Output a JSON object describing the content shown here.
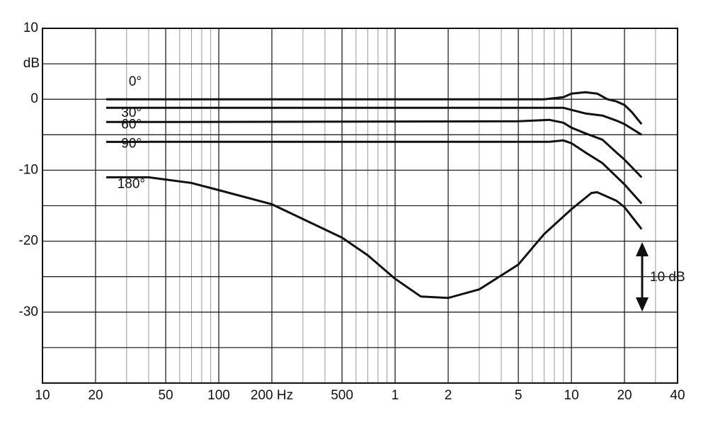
{
  "chart_data": {
    "type": "line",
    "y_axis_label": "dB",
    "annotation": "10 dB",
    "log_x": true,
    "grid": true,
    "color": "#111111",
    "xlim": [
      10,
      40000
    ],
    "ylim": [
      -40,
      10
    ],
    "xticks": [
      10,
      20,
      50,
      100,
      {
        "value": 200,
        "label": "200 Hz"
      },
      500,
      {
        "value": 1000,
        "label": "1"
      },
      {
        "value": 2000,
        "label": "2"
      },
      {
        "value": 5000,
        "label": "5"
      },
      {
        "value": 10000,
        "label": "10"
      },
      {
        "value": 20000,
        "label": "20"
      },
      {
        "value": 40000,
        "label": "40"
      }
    ],
    "x_minor_grid": [
      30,
      40,
      60,
      70,
      80,
      90,
      300,
      400,
      600,
      700,
      800,
      900,
      3000,
      4000,
      6000,
      7000,
      8000,
      9000,
      30000
    ],
    "yticks": [
      10,
      0,
      -10,
      -20,
      -30
    ],
    "y_minor_grid": [
      5,
      -5,
      -15,
      -25,
      -35
    ],
    "series": [
      {
        "name": "0°",
        "x": [
          40,
          7000,
          9000,
          10000,
          12000,
          14000,
          16000,
          18000,
          20000,
          22000,
          25000
        ],
        "values": [
          0,
          0,
          0.3,
          0.8,
          1,
          0.8,
          0,
          -0.3,
          -0.8,
          -1.8,
          -3.5
        ]
      },
      {
        "name": "30°",
        "x": [
          40,
          9000,
          10000,
          12000,
          15000,
          18000,
          20000,
          25000
        ],
        "values": [
          -1.2,
          -1.2,
          -1.5,
          -2,
          -2.3,
          -3,
          -3.5,
          -5
        ]
      },
      {
        "name": "60°",
        "x": [
          40,
          5000,
          7500,
          9000,
          10000,
          12000,
          15000,
          18000,
          20000,
          25000
        ],
        "values": [
          -3.2,
          -3.1,
          -2.9,
          -3.3,
          -4,
          -4.8,
          -5.7,
          -7.5,
          -8.5,
          -11
        ]
      },
      {
        "name": "90°",
        "x": [
          40,
          7500,
          9000,
          10000,
          12000,
          15000,
          20000,
          25000
        ],
        "values": [
          -6,
          -6,
          -5.8,
          -6.2,
          -7.5,
          -9,
          -12,
          -14.7
        ]
      },
      {
        "name": "180°",
        "x": [
          40,
          70,
          100,
          200,
          500,
          700,
          1000,
          1400,
          2000,
          3000,
          5000,
          7000,
          10000,
          13000,
          14000,
          18000,
          20000,
          25000
        ],
        "values": [
          -11,
          -11.8,
          -12.8,
          -14.8,
          -19.5,
          -22,
          -25.3,
          -27.8,
          -28,
          -26.8,
          -23.3,
          -19,
          -15.5,
          -13.2,
          -13.1,
          -14.3,
          -15.2,
          -18.3
        ]
      }
    ]
  }
}
